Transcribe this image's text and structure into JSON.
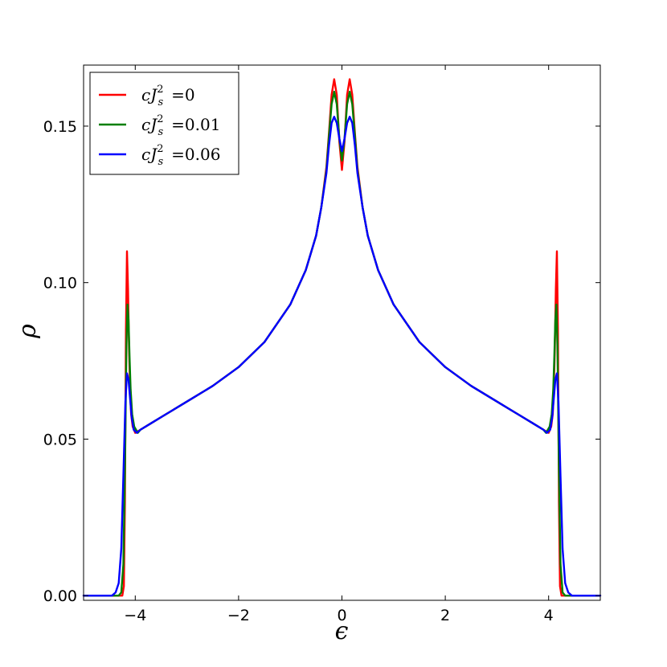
{
  "chart_data": {
    "type": "line",
    "title": "",
    "xlabel": "ϵ",
    "ylabel": "ρ",
    "xlim": [
      -5,
      5
    ],
    "ylim": [
      -0.0015,
      0.1695
    ],
    "x_ticks": [
      -4,
      -2,
      0,
      2,
      4
    ],
    "x_tick_labels": [
      "−4",
      "−2",
      "0",
      "2",
      "4"
    ],
    "y_ticks": [
      0.0,
      0.05,
      0.1,
      0.15
    ],
    "y_tick_labels": [
      "0.00",
      "0.05",
      "0.10",
      "0.15"
    ],
    "grid": false,
    "legend_position": "upper-left",
    "colors": [
      "#ff0000",
      "#007f00",
      "#0000ff"
    ],
    "series": [
      {
        "name": "cJs² =0",
        "legend": {
          "var": "c",
          "J": "J",
          "sub": "s",
          "sup": "2",
          "eq": "=0"
        },
        "color": "#ff0000",
        "x": [
          -5.0,
          -4.3,
          -4.25,
          -4.22,
          -4.2,
          -4.18,
          -4.16,
          -4.14,
          -4.12,
          -4.1,
          -4.08,
          -4.05,
          -4.0,
          -3.9,
          -3.7,
          -3.5,
          -3.3,
          -3.0,
          -2.5,
          -2.0,
          -1.5,
          -1.0,
          -0.7,
          -0.5,
          -0.4,
          -0.3,
          -0.25,
          -0.2,
          -0.15,
          -0.1,
          -0.05,
          0.0,
          0.05,
          0.1,
          0.15,
          0.2,
          0.25,
          0.3,
          0.4,
          0.5,
          0.7,
          1.0,
          1.5,
          2.0,
          2.5,
          3.0,
          3.3,
          3.5,
          3.7,
          3.9,
          4.0,
          4.05,
          4.08,
          4.1,
          4.12,
          4.14,
          4.16,
          4.18,
          4.2,
          4.22,
          4.25,
          4.3,
          5.0
        ],
        "values": [
          0.0,
          0.0,
          0.0,
          0.003,
          0.03,
          0.085,
          0.11,
          0.098,
          0.079,
          0.066,
          0.058,
          0.054,
          0.052,
          0.053,
          0.055,
          0.057,
          0.059,
          0.062,
          0.067,
          0.073,
          0.081,
          0.093,
          0.104,
          0.115,
          0.124,
          0.137,
          0.148,
          0.16,
          0.165,
          0.16,
          0.145,
          0.136,
          0.145,
          0.16,
          0.165,
          0.16,
          0.148,
          0.137,
          0.124,
          0.115,
          0.104,
          0.093,
          0.081,
          0.073,
          0.067,
          0.062,
          0.059,
          0.057,
          0.055,
          0.053,
          0.052,
          0.054,
          0.058,
          0.066,
          0.079,
          0.098,
          0.11,
          0.085,
          0.03,
          0.003,
          0.0,
          0.0,
          0.0
        ]
      },
      {
        "name": "cJs² =0.01",
        "legend": {
          "var": "c",
          "J": "J",
          "sub": "s",
          "sup": "2",
          "eq": "=0.01"
        },
        "color": "#007f00",
        "x": [
          -5.0,
          -4.32,
          -4.27,
          -4.23,
          -4.2,
          -4.17,
          -4.15,
          -4.13,
          -4.11,
          -4.09,
          -4.06,
          -4.02,
          -3.95,
          -3.9,
          -3.7,
          -3.5,
          -3.3,
          -3.0,
          -2.5,
          -2.0,
          -1.5,
          -1.0,
          -0.7,
          -0.5,
          -0.4,
          -0.3,
          -0.25,
          -0.2,
          -0.15,
          -0.1,
          -0.05,
          0.0,
          0.05,
          0.1,
          0.15,
          0.2,
          0.25,
          0.3,
          0.4,
          0.5,
          0.7,
          1.0,
          1.5,
          2.0,
          2.5,
          3.0,
          3.3,
          3.5,
          3.7,
          3.9,
          3.95,
          4.02,
          4.06,
          4.09,
          4.11,
          4.13,
          4.15,
          4.17,
          4.2,
          4.23,
          4.27,
          4.32,
          5.0
        ],
        "values": [
          0.0,
          0.0,
          0.001,
          0.01,
          0.04,
          0.08,
          0.093,
          0.088,
          0.076,
          0.066,
          0.058,
          0.054,
          0.052,
          0.053,
          0.055,
          0.057,
          0.059,
          0.062,
          0.067,
          0.073,
          0.081,
          0.093,
          0.104,
          0.115,
          0.124,
          0.136,
          0.147,
          0.157,
          0.161,
          0.157,
          0.146,
          0.139,
          0.146,
          0.157,
          0.161,
          0.157,
          0.147,
          0.136,
          0.124,
          0.115,
          0.104,
          0.093,
          0.081,
          0.073,
          0.067,
          0.062,
          0.059,
          0.057,
          0.055,
          0.053,
          0.052,
          0.054,
          0.058,
          0.066,
          0.076,
          0.088,
          0.093,
          0.08,
          0.04,
          0.01,
          0.001,
          0.0,
          0.0
        ]
      },
      {
        "name": "cJs² =0.06",
        "legend": {
          "var": "c",
          "J": "J",
          "sub": "s",
          "sup": "2",
          "eq": "=0.06"
        },
        "color": "#0000ff",
        "x": [
          -5.0,
          -4.45,
          -4.38,
          -4.32,
          -4.27,
          -4.23,
          -4.19,
          -4.16,
          -4.13,
          -4.1,
          -4.07,
          -4.03,
          -3.97,
          -3.9,
          -3.7,
          -3.5,
          -3.3,
          -3.0,
          -2.5,
          -2.0,
          -1.5,
          -1.0,
          -0.7,
          -0.5,
          -0.4,
          -0.3,
          -0.25,
          -0.2,
          -0.15,
          -0.1,
          -0.05,
          0.0,
          0.05,
          0.1,
          0.15,
          0.2,
          0.25,
          0.3,
          0.4,
          0.5,
          0.7,
          1.0,
          1.5,
          2.0,
          2.5,
          3.0,
          3.3,
          3.5,
          3.7,
          3.9,
          3.97,
          4.03,
          4.07,
          4.1,
          4.13,
          4.16,
          4.19,
          4.23,
          4.27,
          4.32,
          4.38,
          4.45,
          5.0
        ],
        "values": [
          0.0,
          0.0,
          0.001,
          0.004,
          0.015,
          0.038,
          0.062,
          0.071,
          0.069,
          0.063,
          0.057,
          0.053,
          0.052,
          0.053,
          0.055,
          0.057,
          0.059,
          0.062,
          0.067,
          0.073,
          0.081,
          0.093,
          0.104,
          0.115,
          0.124,
          0.135,
          0.144,
          0.151,
          0.153,
          0.151,
          0.146,
          0.142,
          0.146,
          0.151,
          0.153,
          0.151,
          0.144,
          0.135,
          0.124,
          0.115,
          0.104,
          0.093,
          0.081,
          0.073,
          0.067,
          0.062,
          0.059,
          0.057,
          0.055,
          0.053,
          0.052,
          0.053,
          0.057,
          0.063,
          0.069,
          0.071,
          0.062,
          0.038,
          0.015,
          0.004,
          0.001,
          0.0,
          0.0
        ]
      }
    ]
  }
}
